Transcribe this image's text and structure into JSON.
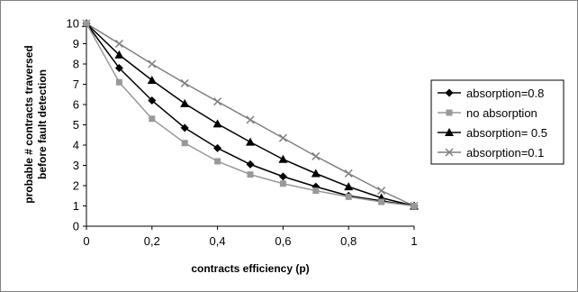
{
  "chart_data": {
    "type": "line",
    "title": "",
    "xlabel": "contracts efficiency (p)",
    "ylabel_lines": [
      "probable # contracts traversed",
      "before fault detection"
    ],
    "x": [
      0,
      0.1,
      0.2,
      0.3,
      0.4,
      0.5,
      0.6,
      0.7,
      0.8,
      0.9,
      1
    ],
    "xticks": [
      0,
      0.2,
      0.4,
      0.6,
      0.8,
      1
    ],
    "xtick_labels": [
      "0",
      "0,2",
      "0,4",
      "0,6",
      "0,8",
      "1"
    ],
    "yticks": [
      0,
      1,
      2,
      3,
      4,
      5,
      6,
      7,
      8,
      9,
      10
    ],
    "xlim": [
      0,
      1
    ],
    "ylim": [
      0,
      10
    ],
    "grid": false,
    "legend_position": "right",
    "series": [
      {
        "name": "absorption=0.8",
        "marker": "diamond",
        "color": "#000000",
        "values": [
          10,
          7.8,
          6.2,
          4.85,
          3.85,
          3.05,
          2.45,
          1.95,
          1.5,
          1.25,
          1
        ]
      },
      {
        "name": "no absorption",
        "marker": "square",
        "color": "#999999",
        "values": [
          10,
          7.1,
          5.3,
          4.1,
          3.2,
          2.55,
          2.1,
          1.75,
          1.45,
          1.2,
          1
        ]
      },
      {
        "name": "absorption= 0.5",
        "marker": "triangle",
        "color": "#000000",
        "values": [
          10,
          8.45,
          7.2,
          6.05,
          5.05,
          4.15,
          3.3,
          2.6,
          1.95,
          1.4,
          1
        ]
      },
      {
        "name": "absorption=0.1",
        "marker": "x",
        "color": "#7f7f7f",
        "values": [
          10,
          9,
          8,
          7.05,
          6.15,
          5.25,
          4.35,
          3.45,
          2.6,
          1.75,
          1
        ]
      }
    ]
  }
}
